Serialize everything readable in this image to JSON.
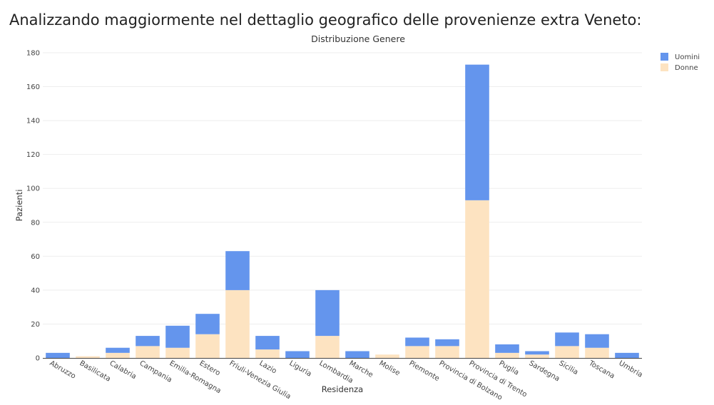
{
  "heading": "Analizzando maggiormente nel dettaglio geografico delle provenienze extra Veneto:",
  "chart_data": {
    "type": "bar",
    "stacked": true,
    "title": "Distribuzione Genere",
    "xlabel": "Residenza",
    "ylabel": "Pazienti",
    "ylim": [
      0,
      180
    ],
    "yticks": [
      0,
      20,
      40,
      60,
      80,
      100,
      120,
      140,
      160,
      180
    ],
    "grid": true,
    "legend_position": "top-right",
    "categories": [
      "Abruzzo",
      "Basilicata",
      "Calabria",
      "Campania",
      "Emilia-Romagna",
      "Estero",
      "Friuli-Venezia Giulia",
      "Lazio",
      "Liguria",
      "Lombardia",
      "Marche",
      "Molise",
      "Piemonte",
      "Provincia di Bolzano",
      "Provincia di Trento",
      "Puglia",
      "Sardegna",
      "Sicilia",
      "Toscana",
      "Umbria"
    ],
    "series": [
      {
        "name": "Donne",
        "color": "#fde3c1",
        "values": [
          0,
          1,
          3,
          7,
          6,
          14,
          40,
          5,
          0,
          13,
          0,
          2,
          7,
          7,
          93,
          3,
          2,
          7,
          6,
          0
        ]
      },
      {
        "name": "Uomini",
        "color": "#6495ed",
        "values": [
          3,
          0,
          3,
          6,
          13,
          12,
          23,
          8,
          4,
          27,
          4,
          0,
          5,
          4,
          80,
          5,
          2,
          8,
          8,
          3
        ]
      }
    ],
    "legend_order": [
      "Uomini",
      "Donne"
    ]
  }
}
